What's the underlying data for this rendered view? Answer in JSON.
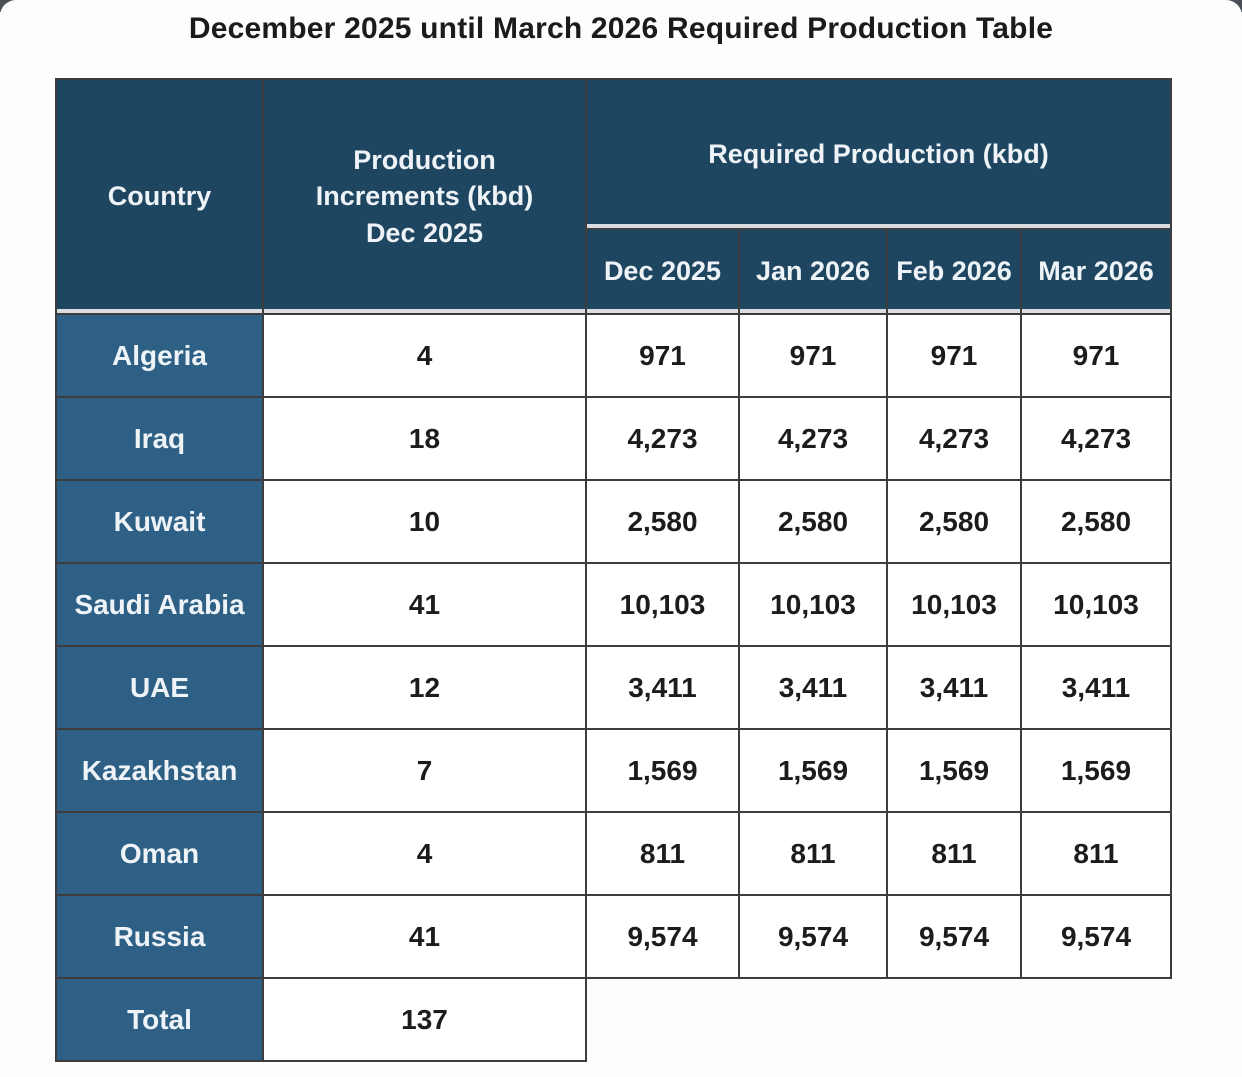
{
  "title": "December 2025 until March 2026 Required Production Table",
  "table": {
    "header": {
      "country": "Country",
      "increments": "Production\nIncrements (kbd)\nDec 2025",
      "required": "Required Production (kbd)",
      "months": [
        "Dec 2025",
        "Jan 2026",
        "Feb 2026",
        "Mar 2026"
      ]
    },
    "rows": [
      {
        "country": "Algeria",
        "increment": "4",
        "required": [
          "971",
          "971",
          "971",
          "971"
        ]
      },
      {
        "country": "Iraq",
        "increment": "18",
        "required": [
          "4,273",
          "4,273",
          "4,273",
          "4,273"
        ]
      },
      {
        "country": "Kuwait",
        "increment": "10",
        "required": [
          "2,580",
          "2,580",
          "2,580",
          "2,580"
        ]
      },
      {
        "country": "Saudi Arabia",
        "increment": "41",
        "required": [
          "10,103",
          "10,103",
          "10,103",
          "10,103"
        ]
      },
      {
        "country": "UAE",
        "increment": "12",
        "required": [
          "3,411",
          "3,411",
          "3,411",
          "3,411"
        ]
      },
      {
        "country": "Kazakhstan",
        "increment": "7",
        "required": [
          "1,569",
          "1,569",
          "1,569",
          "1,569"
        ]
      },
      {
        "country": "Oman",
        "increment": "4",
        "required": [
          "811",
          "811",
          "811",
          "811"
        ]
      },
      {
        "country": "Russia",
        "increment": "41",
        "required": [
          "9,574",
          "9,574",
          "9,574",
          "9,574"
        ]
      }
    ],
    "total": {
      "label": "Total",
      "increment": "137"
    }
  },
  "colors": {
    "header_bg": "#1f4660",
    "country_bg": "#2d6084",
    "cell_bg": "#ffffff",
    "border": "#3d3d3d",
    "header_separator": "#d9dde0",
    "text_dark": "#1c1c1c",
    "text_light": "#eef3f7"
  },
  "chart_data": {
    "type": "table",
    "title": "December 2025 until March 2026 Required Production Table",
    "columns": [
      "Country",
      "Production Increments (kbd) Dec 2025",
      "Required Production (kbd) Dec 2025",
      "Required Production (kbd) Jan 2026",
      "Required Production (kbd) Feb 2026",
      "Required Production (kbd) Mar 2026"
    ],
    "rows": [
      [
        "Algeria",
        4,
        971,
        971,
        971,
        971
      ],
      [
        "Iraq",
        18,
        4273,
        4273,
        4273,
        4273
      ],
      [
        "Kuwait",
        10,
        2580,
        2580,
        2580,
        2580
      ],
      [
        "Saudi Arabia",
        41,
        10103,
        10103,
        10103,
        10103
      ],
      [
        "UAE",
        12,
        3411,
        3411,
        3411,
        3411
      ],
      [
        "Kazakhstan",
        7,
        1569,
        1569,
        1569,
        1569
      ],
      [
        "Oman",
        4,
        811,
        811,
        811,
        811
      ],
      [
        "Russia",
        41,
        9574,
        9574,
        9574,
        9574
      ],
      [
        "Total",
        137,
        null,
        null,
        null,
        null
      ]
    ]
  }
}
